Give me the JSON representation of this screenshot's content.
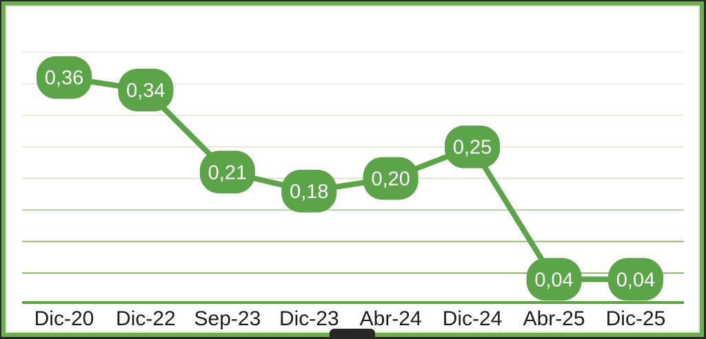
{
  "chart_data": {
    "type": "line",
    "title": "",
    "xlabel": "",
    "ylabel": "",
    "categories": [
      "Dic-20",
      "Dic-22",
      "Sep-23",
      "Dic-23",
      "Abr-24",
      "Dic-24",
      "Abr-25",
      "Dic-25"
    ],
    "values": [
      0.36,
      0.34,
      0.21,
      0.18,
      0.2,
      0.25,
      0.04,
      0.04
    ],
    "value_labels": [
      "0,36",
      "0,34",
      "0,21",
      "0,18",
      "0,20",
      "0,25",
      "0,04",
      "0,04"
    ],
    "decimal_separator": ",",
    "ylim": [
      0,
      0.4
    ],
    "gridline_step": 0.05,
    "grid": true,
    "legend": false,
    "label_style": "rounded-bubble-on-point"
  },
  "colors": {
    "line": "#5ba447",
    "bubble_fill": "#5ba447",
    "bubble_text": "#ffffff",
    "frame_border": "#6fac52",
    "axis_line": "#5ba245",
    "tick_label": "#1d1d1d",
    "plot_background": "#ffffff",
    "outer_background": "#272727",
    "gridlines_top_to_bottom": [
      "#eef2e6",
      "#ebf0e3",
      "#e7eede",
      "#e2ebd8",
      "#dbe7cd",
      "#b5d09c",
      "#94bd75",
      "#8ab767"
    ]
  }
}
